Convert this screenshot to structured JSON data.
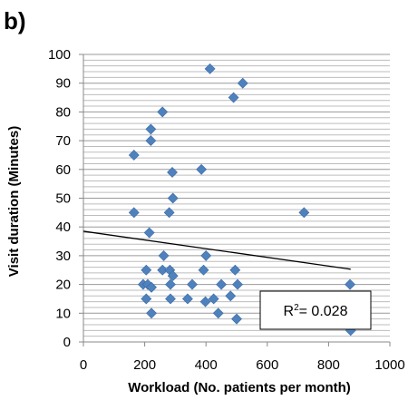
{
  "panel_label": "b)",
  "chart_data": {
    "type": "scatter",
    "title": "",
    "xlabel": "Workload (No. patients per month)",
    "ylabel": "Visit duration (Minutes)",
    "xlim": [
      0,
      1000
    ],
    "ylim": [
      0,
      100
    ],
    "x_ticks": [
      "0",
      "200",
      "400",
      "600",
      "800",
      "1000"
    ],
    "y_ticks": [
      "0",
      "10",
      "20",
      "30",
      "40",
      "50",
      "60",
      "70",
      "80",
      "90",
      "100"
    ],
    "grid": "horizontal minor lines every 2 units",
    "marker": "diamond",
    "marker_color": "#4F81BD",
    "points": [
      {
        "x": 165,
        "y": 65
      },
      {
        "x": 165,
        "y": 45
      },
      {
        "x": 195,
        "y": 20
      },
      {
        "x": 205,
        "y": 25
      },
      {
        "x": 205,
        "y": 15
      },
      {
        "x": 210,
        "y": 20
      },
      {
        "x": 215,
        "y": 38
      },
      {
        "x": 220,
        "y": 74
      },
      {
        "x": 220,
        "y": 70
      },
      {
        "x": 222,
        "y": 19
      },
      {
        "x": 222,
        "y": 10
      },
      {
        "x": 258,
        "y": 80
      },
      {
        "x": 258,
        "y": 25
      },
      {
        "x": 262,
        "y": 30
      },
      {
        "x": 280,
        "y": 45
      },
      {
        "x": 282,
        "y": 25
      },
      {
        "x": 284,
        "y": 20
      },
      {
        "x": 284,
        "y": 15
      },
      {
        "x": 290,
        "y": 59
      },
      {
        "x": 292,
        "y": 50
      },
      {
        "x": 292,
        "y": 23
      },
      {
        "x": 340,
        "y": 15
      },
      {
        "x": 355,
        "y": 20
      },
      {
        "x": 385,
        "y": 60
      },
      {
        "x": 392,
        "y": 25
      },
      {
        "x": 398,
        "y": 14
      },
      {
        "x": 400,
        "y": 30
      },
      {
        "x": 413,
        "y": 95
      },
      {
        "x": 425,
        "y": 15
      },
      {
        "x": 440,
        "y": 10
      },
      {
        "x": 450,
        "y": 20
      },
      {
        "x": 480,
        "y": 16
      },
      {
        "x": 490,
        "y": 85
      },
      {
        "x": 495,
        "y": 25
      },
      {
        "x": 500,
        "y": 8
      },
      {
        "x": 503,
        "y": 20
      },
      {
        "x": 520,
        "y": 90
      },
      {
        "x": 720,
        "y": 45
      },
      {
        "x": 870,
        "y": 20
      },
      {
        "x": 872,
        "y": 4
      }
    ],
    "trendline": {
      "x0": 0,
      "y0": 38.5,
      "x1": 872,
      "y1": 25.3,
      "color": "#000000"
    },
    "annotation": {
      "r_label": "R",
      "superscript": "2",
      "value_text": "= 0.028"
    }
  }
}
